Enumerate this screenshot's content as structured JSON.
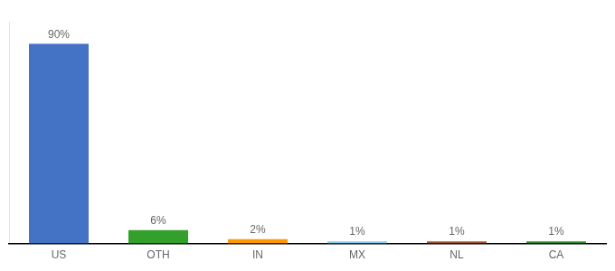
{
  "chart_data": {
    "type": "bar",
    "categories": [
      "US",
      "OTH",
      "IN",
      "MX",
      "NL",
      "CA"
    ],
    "values": [
      90,
      6,
      2,
      1,
      1,
      1
    ],
    "value_labels": [
      "90%",
      "6%",
      "2%",
      "1%",
      "1%",
      "1%"
    ],
    "colors": [
      "#4472c4",
      "#33a02c",
      "#ff9900",
      "#88ccee",
      "#a0522d",
      "#2d8a2d"
    ],
    "ylim": [
      0,
      100
    ],
    "grid": false,
    "data_labels": true,
    "tick_labels": "x"
  }
}
